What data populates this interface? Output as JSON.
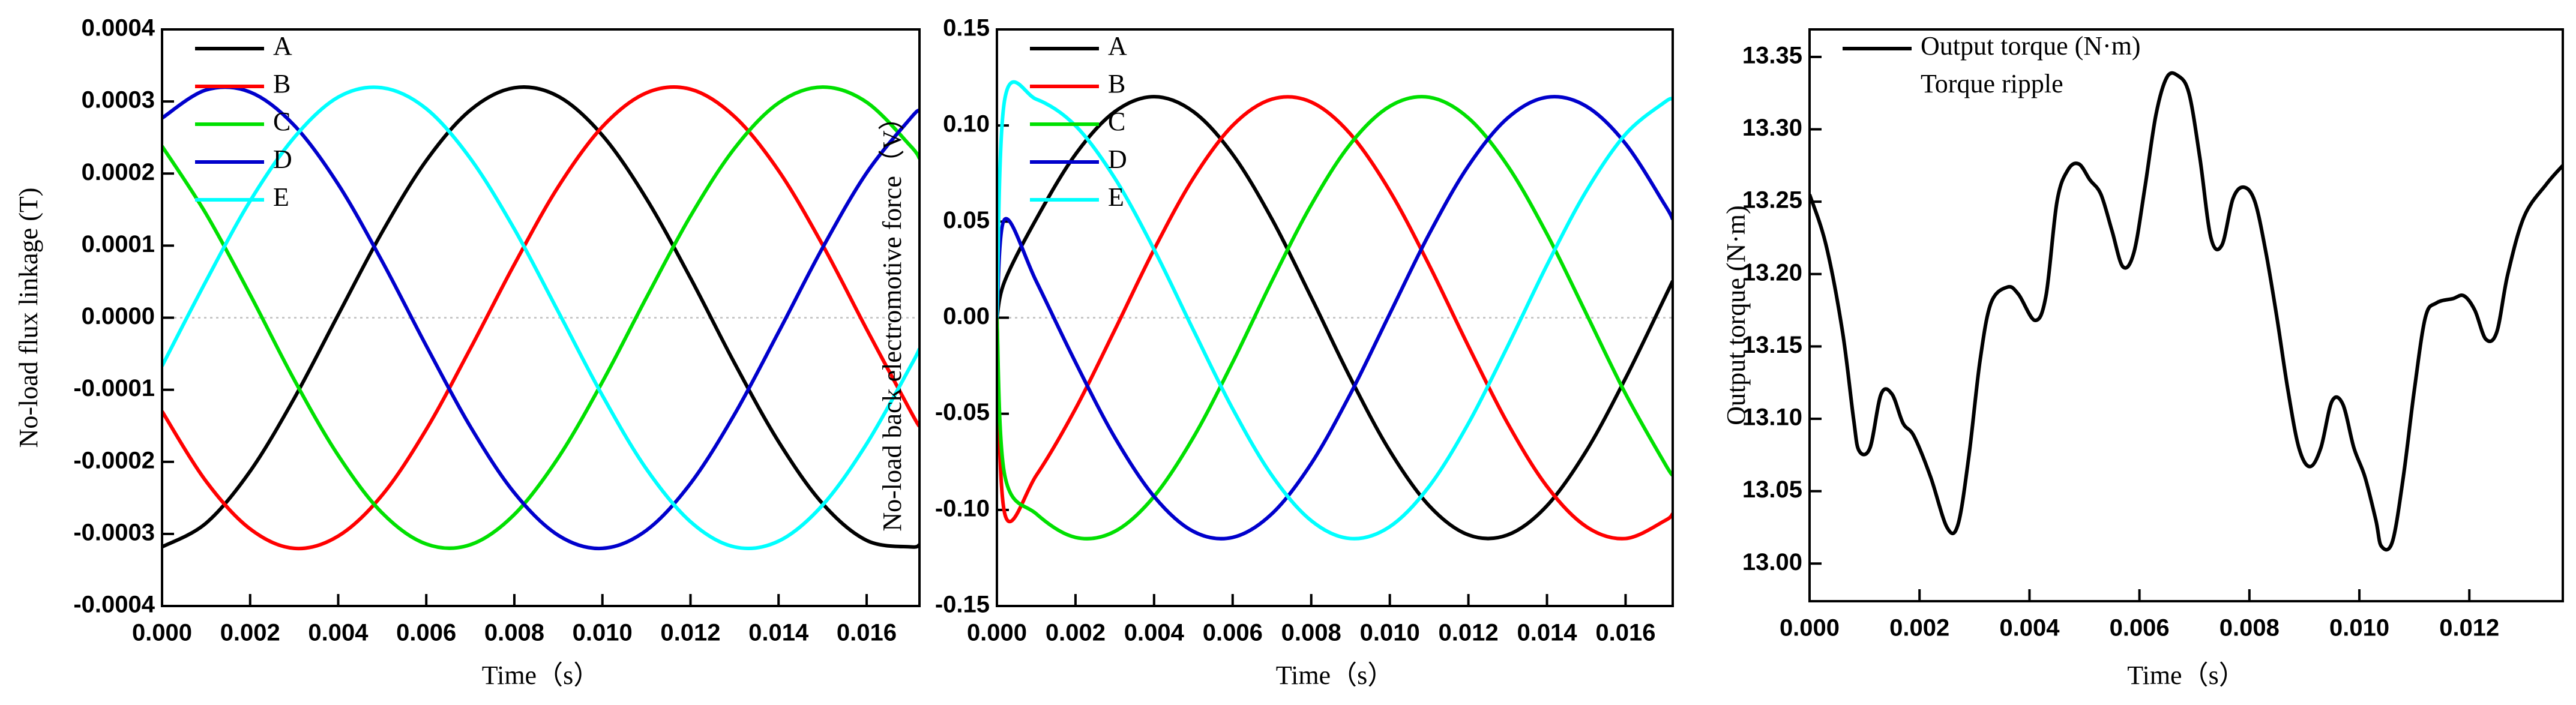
{
  "chart_data": [
    {
      "type": "line",
      "x_label": "Time（s）",
      "y_label": "No-load flux linkage (T)",
      "x": [
        0,
        0.001,
        0.002,
        0.003,
        0.004,
        0.005,
        0.006,
        0.007,
        0.008,
        0.009,
        0.01,
        0.011,
        0.012,
        0.013,
        0.014,
        0.015,
        0.016,
        0.017,
        0.0172
      ],
      "series": [
        {
          "name": "A",
          "color": "#000000",
          "values": [
            -0.000318,
            -0.000285,
            -0.000213,
            -0.000112,
            4e-06,
            0.000119,
            0.000218,
            0.000288,
            0.000319,
            0.000307,
            0.000253,
            0.000165,
            5.5e-05,
            -6.3e-05,
            -0.000172,
            -0.000258,
            -0.000309,
            -0.000318,
            -0.000315
          ]
        },
        {
          "name": "B",
          "color": "#ff0000",
          "values": [
            -0.00013,
            -0.000227,
            -0.000293,
            -0.00032,
            -0.000303,
            -0.000246,
            -0.000155,
            -4.3e-05,
            7.4e-05,
            0.000182,
            0.000265,
            0.000312,
            0.000317,
            0.000279,
            0.000204,
            0.000101,
            -1.6e-05,
            -0.00013,
            -0.000151
          ]
        },
        {
          "name": "C",
          "color": "#00e000",
          "values": [
            0.000238,
            0.000144,
            3.2e-05,
            -8.6e-05,
            -0.000191,
            -0.000271,
            -0.000314,
            -0.000315,
            -0.000273,
            -0.000194,
            -8.9e-05,
            2.8e-05,
            0.000141,
            0.000235,
            0.000298,
            0.00032,
            0.000299,
            0.000238,
            0.000221
          ]
        },
        {
          "name": "D",
          "color": "#0000cc",
          "values": [
            0.000277,
            0.000316,
            0.000313,
            0.000267,
            0.000185,
            7.8e-05,
            -3.9e-05,
            -0.000151,
            -0.000243,
            -0.000302,
            -0.00032,
            -0.000295,
            -0.00023,
            -0.000134,
            -2e-05,
            9.7e-05,
            0.000201,
            0.000277,
            0.000288
          ]
        },
        {
          "name": "E",
          "color": "#00ffff",
          "values": [
            -6.7e-05,
            5.1e-05,
            0.000162,
            0.00025,
            0.000306,
            0.000319,
            0.00029,
            0.000221,
            0.000123,
            8e-06,
            -0.000108,
            -0.00021,
            -0.000283,
            -0.000318,
            -0.00031,
            -0.00026,
            -0.000175,
            -6.7e-05,
            -4.3e-05
          ]
        }
      ],
      "xlim": [
        0,
        0.0172
      ],
      "xticks": [
        {
          "value": 0,
          "label": "0.000"
        },
        0.002,
        0.004,
        0.006,
        0.008,
        {
          "value": 0.01,
          "label": "0.010"
        },
        0.012,
        0.014,
        0.016
      ],
      "ylim": [
        -0.0004,
        0.0004
      ],
      "yticks": [
        -0.0004,
        -0.0003,
        -0.0002,
        -0.0001,
        {
          "value": 0,
          "label": "0.0000"
        },
        0.0001,
        0.0002,
        0.0003,
        0.0004
      ],
      "zero_line": true,
      "legend": "upper left"
    },
    {
      "type": "line",
      "x_label": "Time（s）",
      "y_label": "No-load back electromotive force（V）",
      "x": [
        0,
        0.0002,
        0.001,
        0.002,
        0.003,
        0.004,
        0.005,
        0.006,
        0.007,
        0.008,
        0.009,
        0.01,
        0.011,
        0.012,
        0.013,
        0.014,
        0.015,
        0.016,
        0.017,
        0.0172
      ],
      "series": [
        {
          "name": "A",
          "color": "#000000",
          "values": [
            0,
            0.0191,
            0.0513,
            0.085,
            0.1072,
            0.115,
            0.1072,
            0.085,
            0.0513,
            0.0106,
            -0.0315,
            -0.0693,
            -0.0978,
            -0.113,
            -0.113,
            -0.0978,
            -0.0693,
            -0.0315,
            0.0106,
            0.0191
          ]
        },
        {
          "name": "B",
          "color": "#ff0000",
          "values": [
            0,
            -0.102,
            -0.0821,
            -0.0474,
            -0.0064,
            0.0355,
            0.0726,
            0.1,
            0.1137,
            0.1122,
            0.0955,
            0.0659,
            0.0274,
            -0.0148,
            -0.055,
            -0.0878,
            -0.1087,
            -0.1149,
            -0.1056,
            -0.102
          ]
        },
        {
          "name": "C",
          "color": "#00e000",
          "values": [
            0,
            -0.0821,
            -0.102,
            -0.1143,
            -0.1112,
            -0.093,
            -0.0623,
            -0.0232,
            0.0191,
            0.0587,
            0.0905,
            0.11,
            0.1147,
            0.1039,
            0.079,
            0.0435,
            0.0021,
            -0.0396,
            -0.0759,
            -0.0821
          ]
        },
        {
          "name": "D",
          "color": "#0000cc",
          "values": [
            0,
            0.0512,
            0.019,
            -0.0232,
            -0.0623,
            -0.093,
            -0.1112,
            -0.1143,
            -0.102,
            -0.0759,
            -0.0395,
            0.0021,
            0.0435,
            0.079,
            0.1039,
            0.1147,
            0.11,
            0.0905,
            0.0587,
            0.0512
          ]
        },
        {
          "name": "E",
          "color": "#00ffff",
          "values": [
            0,
            0.1137,
            0.1137,
            0.0999,
            0.0726,
            0.0355,
            -0.0064,
            -0.0474,
            -0.0821,
            -0.1056,
            -0.1149,
            -0.1087,
            -0.0878,
            -0.055,
            -0.0148,
            0.0274,
            0.0659,
            0.0955,
            0.1122,
            0.1137
          ]
        }
      ],
      "xlim": [
        0,
        0.0172
      ],
      "xticks": [
        {
          "value": 0,
          "label": "0.000"
        },
        0.002,
        0.004,
        0.006,
        0.008,
        {
          "value": 0.01,
          "label": "0.010"
        },
        0.012,
        0.014,
        0.016
      ],
      "ylim": [
        -0.15,
        0.15
      ],
      "yticks": [
        -0.15,
        {
          "value": -0.1,
          "label": "-0.10"
        },
        -0.05,
        {
          "value": 0,
          "label": "0.00"
        },
        0.05,
        {
          "value": 0.1,
          "label": "0.10"
        },
        0.15
      ],
      "zero_line": true,
      "legend": "upper left"
    },
    {
      "type": "line",
      "x_label": "Time（s）",
      "y_label": "Output torque (N·m)",
      "annotations": [
        "Torque ripple"
      ],
      "x": [
        0,
        0.0003,
        0.0006,
        0.0008,
        0.0009,
        0.0011,
        0.0013,
        0.0015,
        0.0017,
        0.0019,
        0.0022,
        0.0025,
        0.0027,
        0.0029,
        0.0031,
        0.0033,
        0.0036,
        0.0038,
        0.0041,
        0.0043,
        0.0045,
        0.0047,
        0.0049,
        0.0051,
        0.0053,
        0.0055,
        0.0057,
        0.0059,
        0.0061,
        0.0063,
        0.0065,
        0.0067,
        0.0069,
        0.0071,
        0.0073,
        0.0075,
        0.0077,
        0.0079,
        0.0081,
        0.0083,
        0.0085,
        0.0087,
        0.0089,
        0.0091,
        0.0093,
        0.0095,
        0.0097,
        0.0099,
        0.0101,
        0.0103,
        0.0104,
        0.0106,
        0.0108,
        0.011,
        0.0112,
        0.0114,
        0.0117,
        0.0119,
        0.0121,
        0.0123,
        0.0125,
        0.0127,
        0.013,
        0.0134,
        0.0137
      ],
      "series": [
        {
          "name": "Output torque (N·m)",
          "color": "#000000",
          "values": [
            13.255,
            13.22,
            13.16,
            13.1,
            13.078,
            13.08,
            13.117,
            13.117,
            13.097,
            13.088,
            13.06,
            13.025,
            13.027,
            13.075,
            13.14,
            13.18,
            13.191,
            13.186,
            13.168,
            13.185,
            13.25,
            13.272,
            13.276,
            13.265,
            13.255,
            13.23,
            13.205,
            13.215,
            13.26,
            13.31,
            13.336,
            13.337,
            13.325,
            13.28,
            13.225,
            13.22,
            13.252,
            13.26,
            13.25,
            13.215,
            13.17,
            13.12,
            13.08,
            13.067,
            13.08,
            13.112,
            13.11,
            13.08,
            13.06,
            13.03,
            13.012,
            13.015,
            13.06,
            13.12,
            13.17,
            13.18,
            13.183,
            13.185,
            13.175,
            13.155,
            13.16,
            13.2,
            13.24,
            13.262,
            13.275
          ]
        }
      ],
      "xlim": [
        0,
        0.0137
      ],
      "xticks": [
        {
          "value": 0,
          "label": "0.000"
        },
        0.002,
        0.004,
        0.006,
        0.008,
        {
          "value": 0.01,
          "label": "0.010"
        },
        0.012
      ],
      "ylim": [
        12.974,
        13.369
      ],
      "yticks": [
        {
          "value": 13,
          "label": "13.00"
        },
        13.05,
        {
          "value": 13.1,
          "label": "13.10"
        },
        13.15,
        {
          "value": 13.2,
          "label": "13.20"
        },
        13.25,
        {
          "value": 13.3,
          "label": "13.30"
        },
        13.35
      ],
      "zero_line": false,
      "legend": "upper left"
    }
  ]
}
